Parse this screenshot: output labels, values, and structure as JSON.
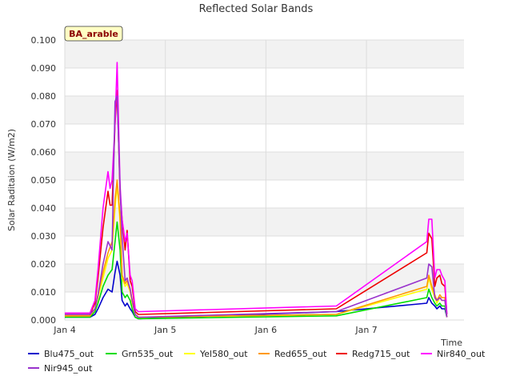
{
  "chart_data": {
    "type": "line",
    "title": "Reflected Solar Bands",
    "ylabel": "Solar Raditaion (W/m2)",
    "xlabel": "Time",
    "badge": "BA_arable",
    "ylim": [
      0,
      0.1
    ],
    "xlim": [
      0,
      3.97
    ],
    "yticks": [
      "0.000",
      "0.010",
      "0.020",
      "0.030",
      "0.040",
      "0.050",
      "0.060",
      "0.070",
      "0.080",
      "0.090",
      "0.100"
    ],
    "xticks": [
      {
        "v": 0,
        "label": "Jan 4"
      },
      {
        "v": 1,
        "label": "Jan 5"
      },
      {
        "v": 2,
        "label": "Jan 6"
      },
      {
        "v": 3,
        "label": "Jan 7"
      }
    ],
    "grid": true,
    "legend_position": "bottom",
    "series": [
      {
        "name": "Blu475_out",
        "color": "#0000cc",
        "x": [
          0,
          0.25,
          0.3,
          0.33,
          0.38,
          0.43,
          0.47,
          0.5,
          0.52,
          0.55,
          0.57,
          0.6,
          0.62,
          0.65,
          0.67,
          0.7,
          0.73,
          0.75,
          2.7,
          3.6,
          3.62,
          3.65,
          3.68,
          3.7,
          3.73,
          3.75,
          3.78,
          3.8
        ],
        "y": [
          0.001,
          0.001,
          0.002,
          0.004,
          0.008,
          0.011,
          0.01,
          0.017,
          0.021,
          0.016,
          0.007,
          0.005,
          0.006,
          0.004,
          0.003,
          0.001,
          0.0005,
          0.0005,
          0.003,
          0.006,
          0.008,
          0.006,
          0.005,
          0.004,
          0.005,
          0.004,
          0.004,
          0.001
        ]
      },
      {
        "name": "Grn535_out",
        "color": "#00dd00",
        "x": [
          0,
          0.25,
          0.3,
          0.33,
          0.38,
          0.43,
          0.47,
          0.5,
          0.52,
          0.55,
          0.57,
          0.6,
          0.62,
          0.65,
          0.67,
          0.7,
          0.73,
          0.75,
          2.7,
          3.6,
          3.62,
          3.65,
          3.68,
          3.7,
          3.73,
          3.75,
          3.78,
          3.8
        ],
        "y": [
          0.001,
          0.001,
          0.003,
          0.006,
          0.012,
          0.016,
          0.018,
          0.028,
          0.035,
          0.025,
          0.01,
          0.008,
          0.009,
          0.007,
          0.004,
          0.001,
          0.0005,
          0.0005,
          0.0015,
          0.008,
          0.011,
          0.008,
          0.006,
          0.005,
          0.006,
          0.005,
          0.005,
          0.001
        ]
      },
      {
        "name": "Yel580_out",
        "color": "#ffff00",
        "x": [
          0,
          0.25,
          0.3,
          0.33,
          0.38,
          0.43,
          0.47,
          0.5,
          0.52,
          0.55,
          0.57,
          0.6,
          0.62,
          0.65,
          0.67,
          0.7,
          0.73,
          0.75,
          2.7,
          3.6,
          3.62,
          3.65,
          3.68,
          3.7,
          3.73,
          3.75,
          3.78,
          3.8
        ],
        "y": [
          0.0015,
          0.0015,
          0.004,
          0.008,
          0.015,
          0.022,
          0.025,
          0.04,
          0.048,
          0.035,
          0.015,
          0.012,
          0.013,
          0.01,
          0.006,
          0.002,
          0.001,
          0.001,
          0.002,
          0.011,
          0.015,
          0.011,
          0.008,
          0.006,
          0.008,
          0.007,
          0.007,
          0.001
        ]
      },
      {
        "name": "Red655_out",
        "color": "#ff9900",
        "x": [
          0,
          0.25,
          0.3,
          0.33,
          0.38,
          0.43,
          0.47,
          0.5,
          0.52,
          0.55,
          0.57,
          0.6,
          0.62,
          0.65,
          0.67,
          0.7,
          0.73,
          0.75,
          2.7,
          3.6,
          3.62,
          3.65,
          3.68,
          3.7,
          3.73,
          3.75,
          3.78,
          3.8
        ],
        "y": [
          0.0015,
          0.0015,
          0.004,
          0.009,
          0.017,
          0.024,
          0.028,
          0.043,
          0.05,
          0.037,
          0.016,
          0.013,
          0.014,
          0.011,
          0.007,
          0.002,
          0.001,
          0.001,
          0.002,
          0.012,
          0.016,
          0.012,
          0.009,
          0.007,
          0.009,
          0.008,
          0.008,
          0.001
        ]
      },
      {
        "name": "Redg715_out",
        "color": "#ee0000",
        "x": [
          0,
          0.25,
          0.3,
          0.33,
          0.38,
          0.43,
          0.45,
          0.47,
          0.5,
          0.52,
          0.55,
          0.57,
          0.6,
          0.62,
          0.65,
          0.67,
          0.7,
          0.73,
          0.75,
          2.7,
          3.6,
          3.62,
          3.65,
          3.68,
          3.7,
          3.73,
          3.75,
          3.78,
          3.8
        ],
        "y": [
          0.002,
          0.002,
          0.006,
          0.015,
          0.033,
          0.046,
          0.041,
          0.041,
          0.07,
          0.082,
          0.045,
          0.036,
          0.025,
          0.032,
          0.014,
          0.012,
          0.003,
          0.002,
          0.002,
          0.004,
          0.024,
          0.031,
          0.029,
          0.012,
          0.015,
          0.016,
          0.013,
          0.012,
          0.002
        ]
      },
      {
        "name": "Nir840_out",
        "color": "#ff00ff",
        "x": [
          0,
          0.25,
          0.3,
          0.33,
          0.38,
          0.43,
          0.45,
          0.47,
          0.5,
          0.52,
          0.55,
          0.57,
          0.6,
          0.62,
          0.65,
          0.67,
          0.7,
          0.73,
          0.75,
          2.7,
          3.6,
          3.62,
          3.65,
          3.68,
          3.7,
          3.73,
          3.75,
          3.78,
          3.8
        ],
        "y": [
          0.0025,
          0.0025,
          0.007,
          0.018,
          0.04,
          0.053,
          0.047,
          0.05,
          0.07,
          0.092,
          0.048,
          0.036,
          0.028,
          0.031,
          0.016,
          0.014,
          0.004,
          0.003,
          0.003,
          0.005,
          0.028,
          0.036,
          0.036,
          0.015,
          0.018,
          0.018,
          0.016,
          0.014,
          0.002
        ]
      },
      {
        "name": "Nir945_out",
        "color": "#9933cc",
        "x": [
          0,
          0.25,
          0.3,
          0.33,
          0.38,
          0.43,
          0.47,
          0.5,
          0.52,
          0.55,
          0.57,
          0.6,
          0.62,
          0.65,
          0.67,
          0.7,
          0.73,
          0.75,
          2.7,
          3.6,
          3.62,
          3.65,
          3.68,
          3.7,
          3.73,
          3.75,
          3.78,
          3.8
        ],
        "y": [
          0.002,
          0.002,
          0.004,
          0.009,
          0.02,
          0.028,
          0.025,
          0.078,
          0.08,
          0.047,
          0.03,
          0.014,
          0.015,
          0.011,
          0.007,
          0.002,
          0.001,
          0.001,
          0.003,
          0.015,
          0.02,
          0.019,
          0.008,
          0.007,
          0.008,
          0.007,
          0.007,
          0.001
        ]
      }
    ]
  }
}
